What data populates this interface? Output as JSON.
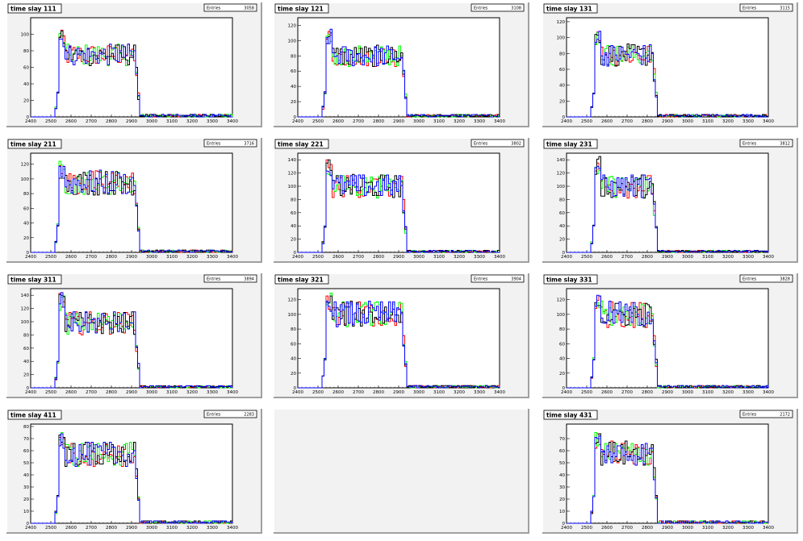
{
  "colors": {
    "canvas_bg": "#ffffff",
    "pad_fill": "#f2f2f2",
    "frame_fill": "#ffffff",
    "series": [
      "#ff0000",
      "#00ff00",
      "#000000",
      "#0000ff"
    ]
  },
  "chart_data": [
    {
      "type": "histogram",
      "title": "time slay 111",
      "stats_label": "Entries",
      "entries": "3058",
      "xlim": [
        2400,
        3400
      ],
      "ylim": [
        0,
        120
      ],
      "xticks": [
        2400,
        2500,
        2600,
        2700,
        2800,
        2900,
        3000,
        3100,
        3200,
        3300,
        3400
      ],
      "yticks": [
        20,
        40,
        60,
        80,
        100
      ],
      "series_count": 4,
      "plateau": {
        "rise": 2540,
        "fall": 2920,
        "peak": 105,
        "level": 75,
        "tail": 3
      }
    },
    {
      "type": "histogram",
      "title": "time slay 121",
      "stats_label": "Entries",
      "entries": "3108",
      "xlim": [
        2400,
        3400
      ],
      "ylim": [
        0,
        130
      ],
      "xticks": [
        2400,
        2500,
        2600,
        2700,
        2800,
        2900,
        3000,
        3100,
        3200,
        3300,
        3400
      ],
      "yticks": [
        20,
        40,
        60,
        80,
        100,
        120
      ],
      "series_count": 4,
      "plateau": {
        "rise": 2540,
        "fall": 2920,
        "peak": 115,
        "level": 80,
        "tail": 3
      }
    },
    {
      "type": "histogram",
      "title": "time slay 131",
      "stats_label": "Entries",
      "entries": "3115",
      "xlim": [
        2400,
        3400
      ],
      "ylim": [
        0,
        125
      ],
      "xticks": [
        2400,
        2500,
        2600,
        2700,
        2800,
        2900,
        3000,
        3100,
        3200,
        3300,
        3400
      ],
      "yticks": [
        20,
        40,
        60,
        80,
        100,
        120
      ],
      "series_count": 4,
      "plateau": {
        "rise": 2540,
        "fall": 2830,
        "peak": 112,
        "level": 78,
        "tail": 3
      }
    },
    {
      "type": "histogram",
      "title": "time slay 211",
      "stats_label": "Entries",
      "entries": "3716",
      "xlim": [
        2400,
        3400
      ],
      "ylim": [
        0,
        135
      ],
      "xticks": [
        2400,
        2500,
        2600,
        2700,
        2800,
        2900,
        3000,
        3100,
        3200,
        3300,
        3400
      ],
      "yticks": [
        20,
        40,
        60,
        80,
        100,
        120
      ],
      "series_count": 4,
      "plateau": {
        "rise": 2540,
        "fall": 2920,
        "peak": 125,
        "level": 95,
        "tail": 3
      }
    },
    {
      "type": "histogram",
      "title": "time slay 221",
      "stats_label": "Entries",
      "entries": "3802",
      "xlim": [
        2400,
        3400
      ],
      "ylim": [
        0,
        150
      ],
      "xticks": [
        2400,
        2500,
        2600,
        2700,
        2800,
        2900,
        3000,
        3100,
        3200,
        3300,
        3400
      ],
      "yticks": [
        20,
        40,
        60,
        80,
        100,
        120,
        140
      ],
      "series_count": 4,
      "plateau": {
        "rise": 2540,
        "fall": 2920,
        "peak": 140,
        "level": 100,
        "tail": 3
      }
    },
    {
      "type": "histogram",
      "title": "time slay 231",
      "stats_label": "Entries",
      "entries": "3812",
      "xlim": [
        2400,
        3400
      ],
      "ylim": [
        0,
        150
      ],
      "xticks": [
        2400,
        2500,
        2600,
        2700,
        2800,
        2900,
        3000,
        3100,
        3200,
        3300,
        3400
      ],
      "yticks": [
        20,
        40,
        60,
        80,
        100,
        120,
        140
      ],
      "series_count": 4,
      "plateau": {
        "rise": 2540,
        "fall": 2830,
        "peak": 145,
        "level": 100,
        "tail": 3
      }
    },
    {
      "type": "histogram",
      "title": "time slay 311",
      "stats_label": "Entries",
      "entries": "3894",
      "xlim": [
        2400,
        3400
      ],
      "ylim": [
        0,
        150
      ],
      "xticks": [
        2400,
        2500,
        2600,
        2700,
        2800,
        2900,
        3000,
        3100,
        3200,
        3300,
        3400
      ],
      "yticks": [
        20,
        40,
        60,
        80,
        100,
        120,
        140
      ],
      "series_count": 4,
      "plateau": {
        "rise": 2540,
        "fall": 2920,
        "peak": 145,
        "level": 98,
        "tail": 3
      }
    },
    {
      "type": "histogram",
      "title": "time slay 321",
      "stats_label": "Entries",
      "entries": "3904",
      "xlim": [
        2400,
        3400
      ],
      "ylim": [
        0,
        135
      ],
      "xticks": [
        2400,
        2500,
        2600,
        2700,
        2800,
        2900,
        3000,
        3100,
        3200,
        3300,
        3400
      ],
      "yticks": [
        20,
        40,
        60,
        80,
        100,
        120
      ],
      "series_count": 4,
      "plateau": {
        "rise": 2540,
        "fall": 2920,
        "peak": 130,
        "level": 100,
        "tail": 3
      }
    },
    {
      "type": "histogram",
      "title": "time slay 331",
      "stats_label": "Entries",
      "entries": "3828",
      "xlim": [
        2400,
        3400
      ],
      "ylim": [
        0,
        135
      ],
      "xticks": [
        2400,
        2500,
        2600,
        2700,
        2800,
        2900,
        3000,
        3100,
        3200,
        3300,
        3400
      ],
      "yticks": [
        20,
        40,
        60,
        80,
        100,
        120
      ],
      "series_count": 4,
      "plateau": {
        "rise": 2540,
        "fall": 2830,
        "peak": 130,
        "level": 100,
        "tail": 3
      }
    },
    {
      "type": "histogram",
      "title": "time slay 411",
      "stats_label": "Entries",
      "entries": "2283",
      "xlim": [
        2400,
        3400
      ],
      "ylim": [
        0,
        82
      ],
      "xticks": [
        2400,
        2500,
        2600,
        2700,
        2800,
        2900,
        3000,
        3100,
        3200,
        3300,
        3400
      ],
      "yticks": [
        10,
        20,
        30,
        40,
        50,
        60,
        70,
        80
      ],
      "series_count": 4,
      "plateau": {
        "rise": 2540,
        "fall": 2920,
        "peak": 78,
        "level": 57,
        "tail": 2
      }
    },
    null,
    {
      "type": "histogram",
      "title": "time slay 431",
      "stats_label": "Entries",
      "entries": "2172",
      "xlim": [
        2400,
        3400
      ],
      "ylim": [
        0,
        82
      ],
      "xticks": [
        2400,
        2500,
        2600,
        2700,
        2800,
        2900,
        3000,
        3100,
        3200,
        3300,
        3400
      ],
      "yticks": [
        10,
        20,
        30,
        40,
        50,
        60,
        70
      ],
      "series_count": 4,
      "plateau": {
        "rise": 2540,
        "fall": 2830,
        "peak": 75,
        "level": 58,
        "tail": 2
      }
    }
  ]
}
